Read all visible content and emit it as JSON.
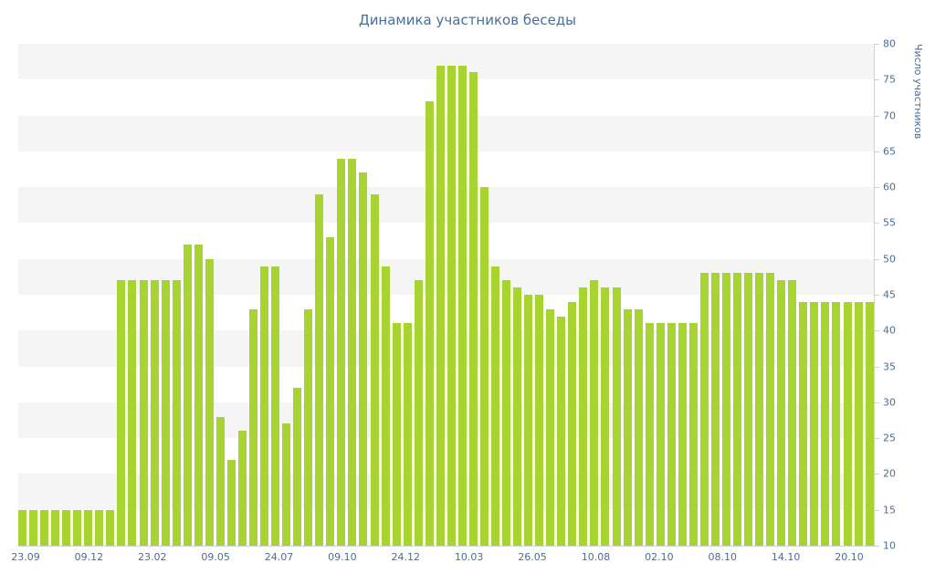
{
  "chart_data": {
    "type": "bar",
    "title": "Динамика участников беседы",
    "xlabel": "",
    "ylabel": "Число участников",
    "ylim": [
      10,
      80
    ],
    "y_tick_step": 5,
    "y_tick_labels": [
      10,
      15,
      20,
      25,
      30,
      35,
      40,
      45,
      50,
      55,
      60,
      65,
      70,
      75,
      80
    ],
    "x_tick_labels": [
      "23.09",
      "09.12",
      "23.02",
      "09.05",
      "24.07",
      "09.10",
      "24.12",
      "10.03",
      "26.05",
      "10.08",
      "02.10",
      "08.10",
      "14.10",
      "20.10"
    ],
    "values": [
      15,
      15,
      15,
      15,
      15,
      15,
      15,
      15,
      15,
      47,
      47,
      47,
      47,
      47,
      47,
      52,
      52,
      50,
      28,
      22,
      26,
      43,
      49,
      49,
      27,
      32,
      43,
      59,
      53,
      64,
      64,
      62,
      59,
      49,
      41,
      41,
      47,
      72,
      77,
      77,
      77,
      76,
      60,
      49,
      47,
      46,
      45,
      45,
      43,
      42,
      44,
      46,
      47,
      46,
      46,
      43,
      43,
      41,
      41,
      41,
      41,
      41,
      48,
      48,
      48,
      48,
      48,
      48,
      48,
      47,
      47,
      44,
      44,
      44,
      44,
      44,
      44,
      44
    ],
    "legend": "none",
    "grid": "alternating-horizontal-bands",
    "colors": {
      "bar": "#a8d432",
      "stripe": "#f5f5f5",
      "text": "#4a6e96",
      "axis": "#c9d2da",
      "background": "#ffffff"
    }
  }
}
